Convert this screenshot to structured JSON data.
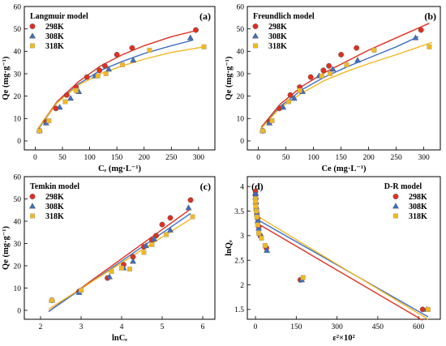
{
  "colors": {
    "s298": "#e03020",
    "s308": "#3f6fc4",
    "s318": "#f2b81e",
    "frame": "#000000"
  },
  "chart_data": [
    {
      "type": "scatter",
      "title": "Langmuir model",
      "panel_label": "(a)",
      "xlabel": "Cₑ (mg·L⁻¹)",
      "ylabel": "Qe (mg·g⁻¹)",
      "xlim": [
        -20,
        330
      ],
      "ylim": [
        -4,
        60
      ],
      "xticks": [
        0,
        50,
        100,
        150,
        200,
        250,
        300
      ],
      "yticks": [
        0,
        10,
        20,
        30,
        40,
        50,
        60
      ],
      "legend_position": "top-left",
      "series": [
        {
          "name": "298K",
          "marker": "circle",
          "x": [
            8,
            20,
            38,
            58,
            75,
            95,
            118,
            128,
            150,
            178,
            295
          ],
          "y": [
            4.5,
            8.5,
            14.5,
            20.5,
            24,
            28.5,
            31.5,
            33.5,
            38.5,
            41.5,
            49.5
          ],
          "fit": {
            "x": [
              5,
              40,
              80,
              120,
              160,
              200,
              250,
              300
            ],
            "y": [
              5.5,
              17.5,
              26.5,
              33.5,
              38.5,
              42.5,
              46.5,
              49.5
            ]
          }
        },
        {
          "name": "308K",
          "marker": "triangle",
          "x": [
            8,
            20,
            45,
            65,
            80,
            110,
            135,
            180,
            285
          ],
          "y": [
            4.5,
            8,
            15,
            19,
            22,
            29,
            32,
            36,
            46
          ],
          "fit": {
            "x": [
              5,
              40,
              80,
              120,
              160,
              200,
              250,
              290
            ],
            "y": [
              5,
              17,
              25.5,
              31.5,
              35.5,
              39,
              42.5,
              45
            ]
          }
        },
        {
          "name": "318K",
          "marker": "square",
          "x": [
            8,
            25,
            55,
            75,
            115,
            130,
            160,
            210,
            310
          ],
          "y": [
            4.5,
            9,
            17.5,
            22.5,
            29,
            30,
            34,
            40.5,
            42
          ],
          "fit": {
            "x": [
              5,
              40,
              80,
              120,
              160,
              200,
              250,
              310
            ],
            "y": [
              5.5,
              17,
              25,
              30,
              33.5,
              36.5,
              39.5,
              42
            ]
          }
        }
      ]
    },
    {
      "type": "scatter",
      "title": "Freundlich model",
      "panel_label": "(b)",
      "xlabel": "Ce (mg·L⁻¹)",
      "ylabel": "Qe (mg·g⁻¹)",
      "xlim": [
        -20,
        330
      ],
      "ylim": [
        -4,
        60
      ],
      "xticks": [
        0,
        50,
        100,
        150,
        200,
        250,
        300
      ],
      "yticks": [
        0,
        10,
        20,
        30,
        40,
        50,
        60
      ],
      "legend_position": "top-left",
      "series": [
        {
          "name": "298K",
          "marker": "circle",
          "x": [
            8,
            20,
            38,
            58,
            75,
            95,
            118,
            128,
            150,
            178,
            295
          ],
          "y": [
            4.5,
            8.5,
            14.5,
            20.5,
            24,
            28.5,
            31.5,
            33.5,
            38.5,
            41.5,
            49.5
          ],
          "fit": {
            "x": [
              5,
              40,
              80,
              120,
              160,
              200,
              250,
              310
            ],
            "y": [
              6,
              16.5,
              24.5,
              30.5,
              35.5,
              40.5,
              46,
              52.5
            ]
          }
        },
        {
          "name": "308K",
          "marker": "triangle",
          "x": [
            8,
            20,
            45,
            65,
            80,
            110,
            135,
            180,
            285
          ],
          "y": [
            4.5,
            8,
            15,
            19,
            22,
            29,
            32,
            36,
            46
          ],
          "fit": {
            "x": [
              5,
              40,
              80,
              120,
              160,
              200,
              250,
              290
            ],
            "y": [
              5.5,
              15.5,
              23,
              28.5,
              33,
              37,
              42,
              46.5
            ]
          }
        },
        {
          "name": "318K",
          "marker": "square",
          "x": [
            8,
            25,
            55,
            75,
            115,
            130,
            160,
            210,
            310
          ],
          "y": [
            4.5,
            9,
            17.5,
            22.5,
            29,
            30,
            34,
            40.5,
            42
          ],
          "fit": {
            "x": [
              5,
              40,
              80,
              120,
              160,
              200,
              250,
              315
            ],
            "y": [
              5.5,
              15,
              21.5,
              27,
              31,
              34.5,
              38.5,
              44
            ]
          }
        }
      ]
    },
    {
      "type": "scatter",
      "title": "Temkin model",
      "panel_label": "(c)",
      "xlabel": "lnCₑ",
      "ylabel": "Qe (mg·g⁻¹)",
      "xlim": [
        1.6,
        6.3
      ],
      "ylim": [
        -4,
        60
      ],
      "xticks": [
        2,
        3,
        4,
        5,
        6
      ],
      "yticks": [
        0,
        10,
        20,
        30,
        40,
        50,
        60
      ],
      "legend_position": "top-left",
      "series": [
        {
          "name": "298K",
          "marker": "circle",
          "x": [
            2.28,
            2.95,
            3.65,
            4.05,
            4.28,
            4.55,
            4.75,
            4.85,
            5.0,
            5.2,
            5.7
          ],
          "y": [
            4.5,
            8.5,
            14.5,
            20.5,
            24,
            28.5,
            31.5,
            33.5,
            38.5,
            41.5,
            49.5
          ],
          "fit": {
            "x": [
              2.2,
              5.7
            ],
            "y": [
              -0.5,
              45.5
            ]
          }
        },
        {
          "name": "308K",
          "marker": "triangle",
          "x": [
            2.28,
            2.95,
            3.7,
            4.05,
            4.28,
            4.6,
            4.8,
            5.2,
            5.65
          ],
          "y": [
            4.5,
            8,
            15,
            19,
            22,
            29,
            32,
            36,
            46
          ],
          "fit": {
            "x": [
              2.2,
              5.7
            ],
            "y": [
              -0.5,
              43.5
            ]
          }
        },
        {
          "name": "318K",
          "marker": "square",
          "x": [
            2.28,
            3.0,
            3.75,
            4.0,
            4.2,
            4.55,
            4.75,
            5.1,
            5.75
          ],
          "y": [
            4.5,
            9,
            17.5,
            19,
            18.5,
            26,
            29.5,
            34,
            42
          ],
          "fit": {
            "x": [
              2.2,
              5.7
            ],
            "y": [
              0.5,
              41
            ]
          }
        }
      ]
    },
    {
      "type": "scatter",
      "title": "D-R model",
      "panel_label": "(d)",
      "xlabel": "ε²×10²",
      "ylabel": "lnQₑ",
      "xlim": [
        -30,
        680
      ],
      "ylim": [
        1.3,
        4.2
      ],
      "xticks": [
        0,
        150,
        300,
        450,
        600
      ],
      "yticks": [
        1.5,
        2.0,
        2.5,
        3.0,
        3.5,
        4.0
      ],
      "legend_position": "top-right",
      "series": [
        {
          "name": "298K",
          "marker": "circle",
          "x": [
            0,
            0,
            1,
            2,
            3,
            5,
            8,
            12,
            18,
            40,
            165,
            615
          ],
          "y": [
            3.9,
            3.83,
            3.75,
            3.65,
            3.55,
            3.45,
            3.35,
            3.18,
            3.0,
            2.75,
            2.1,
            1.5
          ],
          "fit": {
            "x": [
              0,
              615
            ],
            "y": [
              3.27,
              1.28
            ]
          }
        },
        {
          "name": "308K",
          "marker": "triangle",
          "x": [
            0,
            0,
            1,
            3,
            5,
            8,
            12,
            20,
            42,
            170,
            630
          ],
          "y": [
            3.85,
            3.78,
            3.68,
            3.55,
            3.45,
            3.3,
            3.15,
            3.0,
            2.7,
            2.1,
            1.5
          ],
          "fit": {
            "x": [
              0,
              635
            ],
            "y": [
              3.35,
              1.35
            ]
          }
        },
        {
          "name": "318K",
          "marker": "square",
          "x": [
            0,
            0,
            1,
            3,
            5,
            8,
            12,
            22,
            35,
            175,
            635
          ],
          "y": [
            3.75,
            3.7,
            3.6,
            3.5,
            3.38,
            3.22,
            3.05,
            2.95,
            2.8,
            2.15,
            1.5
          ],
          "fit": {
            "x": [
              0,
              635
            ],
            "y": [
              3.42,
              1.3
            ]
          }
        }
      ]
    }
  ]
}
